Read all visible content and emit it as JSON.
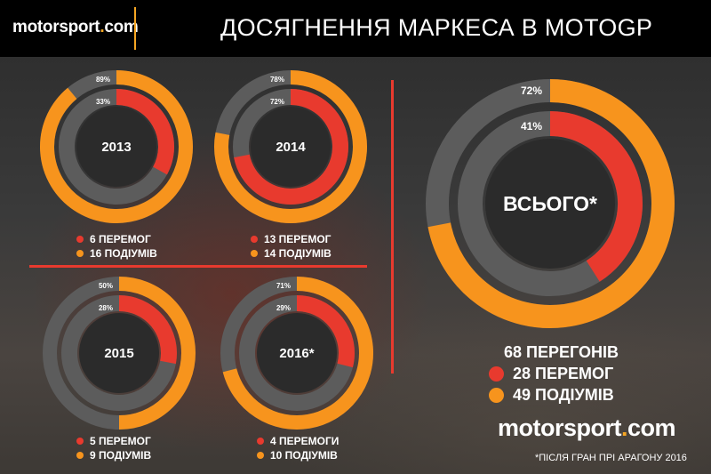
{
  "header": {
    "logo_name": "motorsport",
    "logo_dot": ".",
    "logo_tld": "com",
    "title": "ДОСЯГНЕННЯ МАРКЕСА В MOTOGP"
  },
  "chart_data": [
    {
      "type": "donut",
      "title": "2013",
      "series": [
        {
          "name": "ПЕРЕМОГ",
          "count": 6,
          "percent": 33,
          "color": "#e83a2e"
        },
        {
          "name": "ПОДІУМІВ",
          "count": 16,
          "percent": 89,
          "color": "#f7941d"
        }
      ],
      "labels": {
        "wins": "6 ПЕРЕМОГ",
        "podiums": "16 ПОДІУМІВ",
        "wins_pct": "33%",
        "podiums_pct": "89%"
      }
    },
    {
      "type": "donut",
      "title": "2014",
      "series": [
        {
          "name": "ПЕРЕМОГ",
          "count": 13,
          "percent": 72,
          "color": "#e83a2e"
        },
        {
          "name": "ПОДІУМІВ",
          "count": 14,
          "percent": 78,
          "color": "#f7941d"
        }
      ],
      "labels": {
        "wins": "13 ПЕРЕМОГ",
        "podiums": "14 ПОДІУМІВ",
        "wins_pct": "72%",
        "podiums_pct": "78%"
      }
    },
    {
      "type": "donut",
      "title": "2015",
      "series": [
        {
          "name": "ПЕРЕМОГ",
          "count": 5,
          "percent": 28,
          "color": "#e83a2e"
        },
        {
          "name": "ПОДІУМІВ",
          "count": 9,
          "percent": 50,
          "color": "#f7941d"
        }
      ],
      "labels": {
        "wins": "5 ПЕРЕМОГ",
        "podiums": "9 ПОДІУМІВ",
        "wins_pct": "28%",
        "podiums_pct": "50%"
      }
    },
    {
      "type": "donut",
      "title": "2016*",
      "series": [
        {
          "name": "ПЕРЕМОГИ",
          "count": 4,
          "percent": 29,
          "color": "#e83a2e"
        },
        {
          "name": "ПОДІУМІВ",
          "count": 10,
          "percent": 71,
          "color": "#f7941d"
        }
      ],
      "labels": {
        "wins": "4 ПЕРЕМОГИ",
        "podiums": "10 ПОДІУМІВ",
        "wins_pct": "29%",
        "podiums_pct": "71%"
      }
    },
    {
      "type": "donut",
      "title": "ВСЬОГО*",
      "races": 68,
      "series": [
        {
          "name": "ПЕРЕМОГ",
          "count": 28,
          "percent": 41,
          "color": "#e83a2e"
        },
        {
          "name": "ПОДІУМІВ",
          "count": 49,
          "percent": 72,
          "color": "#f7941d"
        }
      ],
      "labels": {
        "races": "68 ПЕРЕГОНІВ",
        "wins": "28 ПЕРЕМОГ",
        "podiums": "49 ПОДІУМІВ",
        "wins_pct": "41%",
        "podiums_pct": "72%"
      }
    }
  ],
  "watermark": {
    "name": "motorsport",
    "dot": ".",
    "tld": "com"
  },
  "footnote": "*ПІСЛЯ ГРАН ПРІ АРАГОНУ 2016"
}
